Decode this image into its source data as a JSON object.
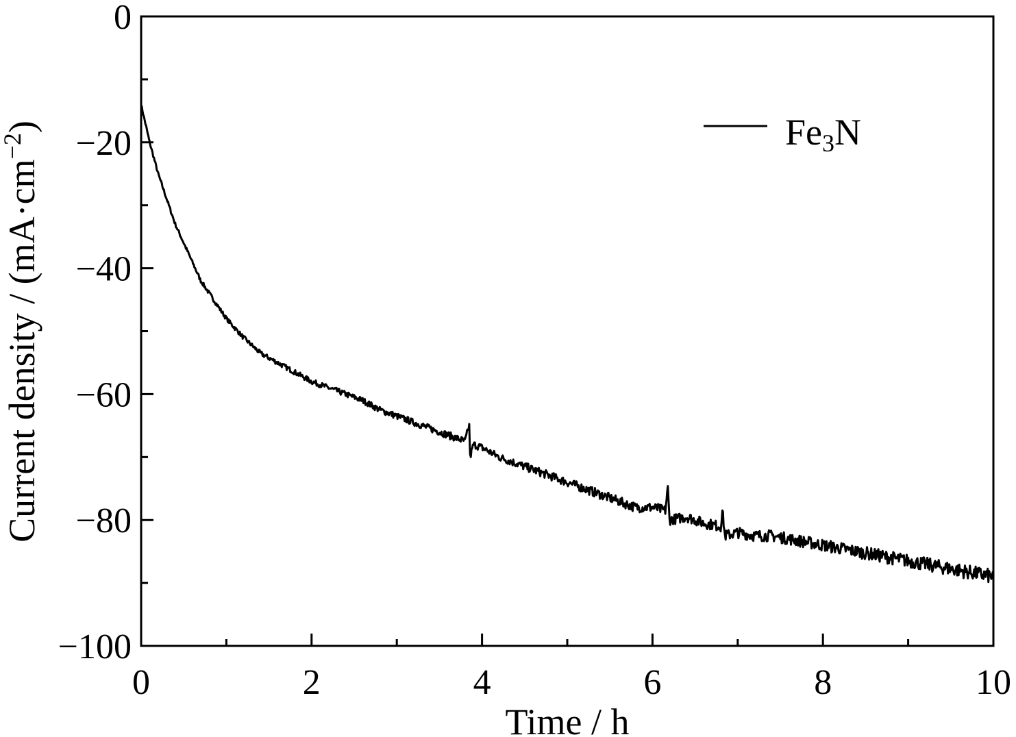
{
  "chart_data": {
    "type": "line",
    "xlabel": "Time / h",
    "ylabel": {
      "prefix": "Current density / (mA·cm",
      "superscript": "−2",
      "suffix": ")"
    },
    "xlim": [
      0,
      10
    ],
    "ylim": [
      -100,
      0
    ],
    "x_ticks": [
      0,
      2,
      4,
      6,
      8,
      10
    ],
    "x_tick_labels": [
      "0",
      "2",
      "4",
      "6",
      "8",
      "10"
    ],
    "x_minor_ticks": [
      1,
      3,
      5,
      7,
      9
    ],
    "y_ticks": [
      0,
      -20,
      -40,
      -60,
      -80,
      -100
    ],
    "y_tick_labels": [
      "0",
      "−20",
      "−40",
      "−60",
      "−80",
      "−100"
    ],
    "y_minor_ticks": [
      -10,
      -30,
      -50,
      -70,
      -90
    ],
    "grid": false,
    "legend_position": "top-right",
    "line_color": "#000000",
    "series": [
      {
        "name_main": "Fe",
        "name_sub": "3",
        "name_end": "N",
        "x": [
          0,
          0.05,
          0.1,
          0.2,
          0.3,
          0.4,
          0.5,
          0.6,
          0.7,
          0.8,
          0.9,
          1.0,
          1.2,
          1.4,
          1.6,
          1.8,
          2.0,
          2.2,
          2.4,
          2.6,
          2.8,
          3.0,
          3.2,
          3.4,
          3.6,
          3.8,
          3.85,
          3.86,
          3.9,
          4.0,
          4.2,
          4.4,
          4.6,
          4.8,
          5.0,
          5.2,
          5.4,
          5.6,
          5.8,
          6.0,
          6.15,
          6.18,
          6.2,
          6.4,
          6.6,
          6.8,
          6.82,
          6.85,
          7.0,
          7.2,
          7.4,
          7.6,
          7.8,
          8.0,
          8.2,
          8.4,
          8.6,
          8.8,
          9.0,
          9.2,
          9.4,
          9.6,
          9.8,
          10.0
        ],
        "y": [
          -14,
          -17,
          -20,
          -25,
          -29,
          -33,
          -36,
          -39,
          -42,
          -44,
          -46,
          -48,
          -51,
          -53.5,
          -55,
          -56.5,
          -58,
          -59,
          -60,
          -61,
          -62.5,
          -63.5,
          -64.5,
          -65.5,
          -66.5,
          -67.5,
          -65,
          -70,
          -68,
          -68.5,
          -70,
          -71,
          -72,
          -73,
          -74,
          -75,
          -76,
          -77,
          -78,
          -78,
          -78.5,
          -75,
          -80,
          -79.5,
          -80.5,
          -81,
          -78.5,
          -82.5,
          -82,
          -82.5,
          -82.5,
          -83,
          -83.5,
          -84,
          -84.5,
          -85,
          -85.5,
          -86,
          -86.5,
          -87,
          -87.5,
          -88,
          -88.5,
          -89
        ]
      }
    ]
  }
}
